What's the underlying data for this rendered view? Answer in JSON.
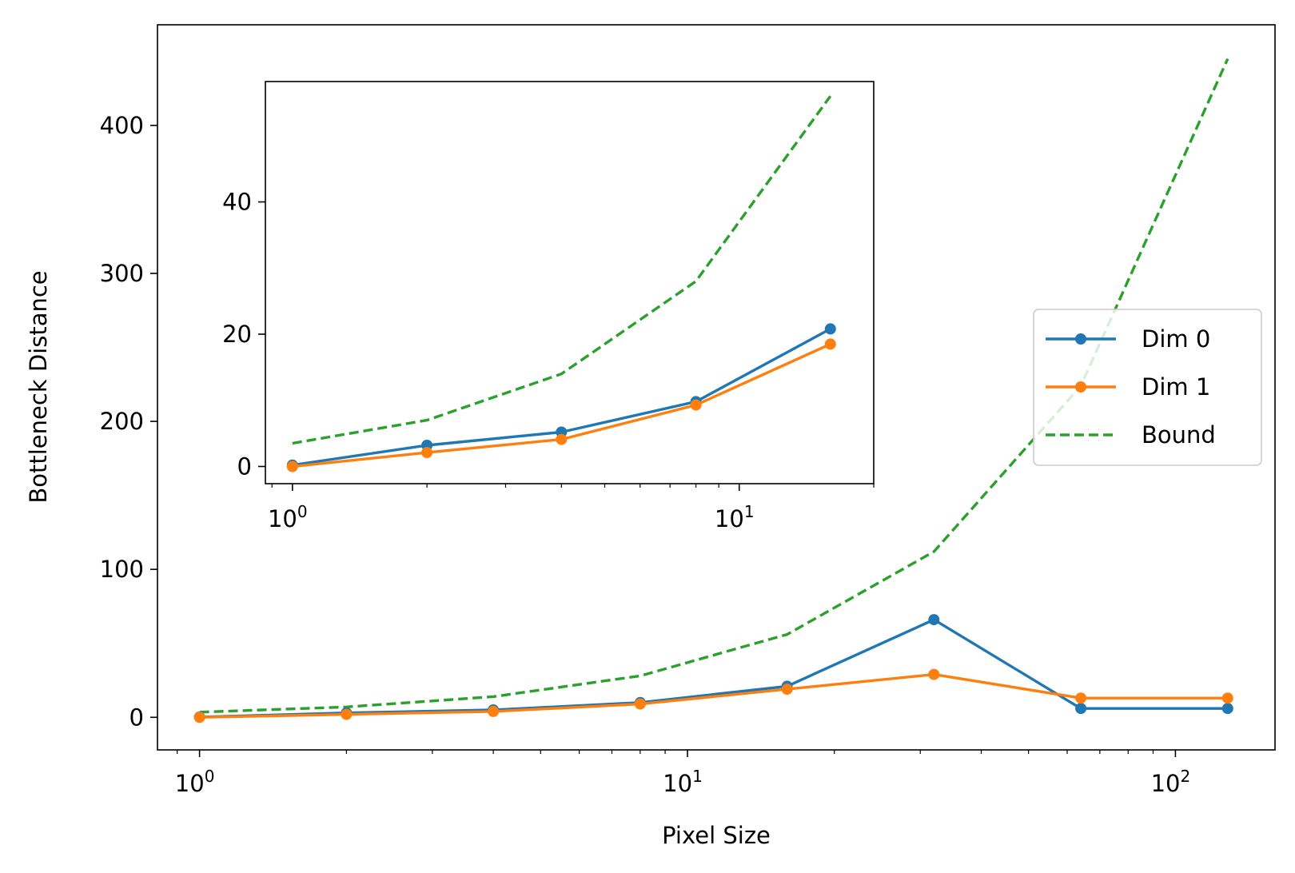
{
  "chart_data": [
    {
      "type": "line",
      "title": "",
      "xlabel": "Pixel Size",
      "ylabel": "Bottleneck Distance",
      "xscale": "log",
      "xlim": [
        0.82,
        160
      ],
      "ylim": [
        -22,
        468
      ],
      "x_ticks": [
        {
          "value": 1,
          "base": "10",
          "exp": "0"
        },
        {
          "value": 10,
          "base": "10",
          "exp": "1"
        },
        {
          "value": 100,
          "base": "10",
          "exp": "2"
        }
      ],
      "y_ticks": [
        {
          "value": 0,
          "label": "0"
        },
        {
          "value": 100,
          "label": "100"
        },
        {
          "value": 200,
          "label": "200"
        },
        {
          "value": 300,
          "label": "300"
        },
        {
          "value": 400,
          "label": "400"
        }
      ],
      "grid": false,
      "legend_position": "center-right",
      "series": [
        {
          "name": "Dim 0",
          "color": "#1f77b4",
          "style": "solid",
          "marker": true,
          "x": [
            1,
            2,
            4,
            8,
            16,
            32,
            64,
            128
          ],
          "y": [
            0.2,
            3,
            5,
            10,
            21,
            66,
            6,
            6
          ]
        },
        {
          "name": "Dim 1",
          "color": "#ff7f0e",
          "style": "solid",
          "marker": true,
          "x": [
            1,
            2,
            4,
            8,
            16,
            32,
            64,
            128
          ],
          "y": [
            0,
            2,
            4,
            9,
            19,
            29,
            13,
            13
          ]
        },
        {
          "name": "Bound",
          "color": "#2ca02c",
          "style": "dashed",
          "marker": false,
          "x": [
            1,
            2,
            4,
            8,
            16,
            32,
            64,
            128
          ],
          "y": [
            3.5,
            7,
            14,
            28,
            56,
            112,
            224,
            445
          ]
        }
      ]
    },
    {
      "type": "line",
      "title": "",
      "xlabel": "",
      "ylabel": "",
      "xscale": "log",
      "xlim": [
        0.87,
        20
      ],
      "ylim": [
        -2.6,
        58.2
      ],
      "x_ticks": [
        {
          "value": 1,
          "base": "10",
          "exp": "0"
        },
        {
          "value": 10,
          "base": "10",
          "exp": "1"
        }
      ],
      "y_ticks": [
        {
          "value": 0,
          "label": "0"
        },
        {
          "value": 20,
          "label": "20"
        },
        {
          "value": 40,
          "label": "40"
        }
      ],
      "grid": false,
      "series": [
        {
          "name": "Dim 0",
          "color": "#1f77b4",
          "style": "solid",
          "marker": true,
          "x": [
            1,
            2,
            4,
            8,
            16
          ],
          "y": [
            0.2,
            3.2,
            5.2,
            9.8,
            20.8
          ]
        },
        {
          "name": "Dim 1",
          "color": "#ff7f0e",
          "style": "solid",
          "marker": true,
          "x": [
            1,
            2,
            4,
            8,
            16
          ],
          "y": [
            0,
            2.1,
            4.1,
            9.3,
            18.5
          ]
        },
        {
          "name": "Bound",
          "color": "#2ca02c",
          "style": "dashed",
          "marker": false,
          "x": [
            1,
            2,
            4,
            8,
            16
          ],
          "y": [
            3.5,
            7,
            14,
            28,
            56
          ]
        }
      ]
    }
  ]
}
